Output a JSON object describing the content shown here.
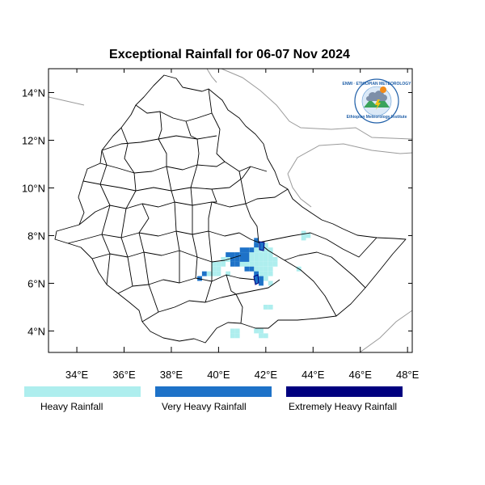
{
  "title": "Exceptional Rainfall for 06-07 Nov 2024",
  "map": {
    "lon_range": [
      32.8,
      48.2
    ],
    "lat_range": [
      3.1,
      15.0
    ],
    "x_ticks": [
      {
        "lon": 34,
        "label": "34°E"
      },
      {
        "lon": 36,
        "label": "36°E"
      },
      {
        "lon": 38,
        "label": "38°E"
      },
      {
        "lon": 40,
        "label": "40°E"
      },
      {
        "lon": 42,
        "label": "42°E"
      },
      {
        "lon": 44,
        "label": "44°E"
      },
      {
        "lon": 46,
        "label": "46°E"
      },
      {
        "lon": 48,
        "label": "48°E"
      }
    ],
    "y_ticks": [
      {
        "lat": 4,
        "label": "4°N"
      },
      {
        "lat": 6,
        "label": "6°N"
      },
      {
        "lat": 8,
        "label": "8°N"
      },
      {
        "lat": 10,
        "label": "10°N"
      },
      {
        "lat": 12,
        "label": "12°N"
      },
      {
        "lat": 14,
        "label": "14°N"
      }
    ]
  },
  "legend": [
    {
      "id": "heavy",
      "label": "Heavy Rainfall",
      "color": "#aeeeee"
    },
    {
      "id": "very-heavy",
      "label": "Very Heavy Rainfall",
      "color": "#1e72c8"
    },
    {
      "id": "extreme",
      "label": "Extremely Heavy Rainfall",
      "color": "#00007f"
    }
  ],
  "colors": {
    "boundary": "#000000",
    "neighbor": "#9a9a9a",
    "heavy": "#aeeeee",
    "very_heavy": "#1e72c8"
  },
  "rainfall_cells": {
    "cell_size_deg": 0.2,
    "heavy": [
      [
        43.6,
        7.9
      ],
      [
        43.8,
        8.0
      ],
      [
        43.6,
        8.1
      ],
      [
        41.6,
        7.6
      ],
      [
        41.8,
        7.6
      ],
      [
        42.0,
        7.6
      ],
      [
        41.4,
        7.4
      ],
      [
        41.6,
        7.4
      ],
      [
        41.8,
        7.4
      ],
      [
        42.0,
        7.4
      ],
      [
        42.2,
        7.4
      ],
      [
        40.8,
        7.2
      ],
      [
        41.0,
        7.2
      ],
      [
        41.2,
        7.2
      ],
      [
        41.4,
        7.2
      ],
      [
        41.6,
        7.2
      ],
      [
        41.8,
        7.2
      ],
      [
        42.0,
        7.2
      ],
      [
        42.2,
        7.2
      ],
      [
        40.2,
        7.0
      ],
      [
        40.4,
        7.0
      ],
      [
        40.6,
        7.0
      ],
      [
        40.8,
        7.0
      ],
      [
        41.0,
        7.0
      ],
      [
        41.2,
        7.0
      ],
      [
        41.4,
        7.0
      ],
      [
        41.6,
        7.0
      ],
      [
        41.8,
        7.0
      ],
      [
        42.0,
        7.0
      ],
      [
        42.2,
        7.0
      ],
      [
        42.4,
        7.0
      ],
      [
        39.8,
        6.8
      ],
      [
        40.0,
        6.8
      ],
      [
        40.2,
        6.8
      ],
      [
        41.0,
        6.8
      ],
      [
        41.2,
        6.8
      ],
      [
        41.4,
        6.8
      ],
      [
        41.6,
        6.8
      ],
      [
        41.8,
        6.8
      ],
      [
        42.0,
        6.8
      ],
      [
        42.2,
        6.8
      ],
      [
        42.4,
        6.8
      ],
      [
        39.8,
        6.6
      ],
      [
        40.0,
        6.6
      ],
      [
        41.4,
        6.6
      ],
      [
        41.6,
        6.6
      ],
      [
        41.8,
        6.6
      ],
      [
        42.0,
        6.6
      ],
      [
        42.2,
        6.6
      ],
      [
        43.4,
        6.6
      ],
      [
        39.6,
        6.4
      ],
      [
        39.8,
        6.4
      ],
      [
        40.0,
        6.4
      ],
      [
        40.4,
        6.4
      ],
      [
        41.6,
        6.4
      ],
      [
        41.8,
        6.4
      ],
      [
        42.0,
        6.4
      ],
      [
        42.2,
        6.4
      ],
      [
        39.2,
        6.2
      ],
      [
        41.8,
        6.2
      ],
      [
        42.0,
        6.2
      ],
      [
        41.8,
        6.0
      ],
      [
        42.2,
        6.0
      ],
      [
        42.0,
        5.0
      ],
      [
        42.2,
        5.0
      ],
      [
        40.6,
        4.0
      ],
      [
        40.8,
        4.0
      ],
      [
        41.6,
        4.0
      ],
      [
        41.8,
        4.0
      ],
      [
        40.6,
        3.8
      ],
      [
        40.8,
        3.8
      ],
      [
        41.8,
        3.8
      ],
      [
        42.0,
        3.8
      ]
    ],
    "very_heavy": [
      [
        41.6,
        7.8
      ],
      [
        41.6,
        7.6
      ],
      [
        41.0,
        7.4
      ],
      [
        41.2,
        7.4
      ],
      [
        41.4,
        7.4
      ],
      [
        40.4,
        7.2
      ],
      [
        40.6,
        7.2
      ],
      [
        40.8,
        7.2
      ],
      [
        41.0,
        7.2
      ],
      [
        41.2,
        7.2
      ],
      [
        40.6,
        7.0
      ],
      [
        40.8,
        7.0
      ],
      [
        41.0,
        7.0
      ],
      [
        41.2,
        7.0
      ],
      [
        40.6,
        6.8
      ],
      [
        40.8,
        6.8
      ],
      [
        41.2,
        6.6
      ],
      [
        41.4,
        6.6
      ],
      [
        41.6,
        6.4
      ],
      [
        41.6,
        6.2
      ],
      [
        41.8,
        6.2
      ],
      [
        41.8,
        6.0
      ],
      [
        39.4,
        6.4
      ],
      [
        39.2,
        6.2
      ]
    ]
  },
  "logo": {
    "arc_text": "ENMI · ETHIOPIAN METEOROLOGY",
    "sub_text": "Ethiopian Meteorology Institute"
  }
}
